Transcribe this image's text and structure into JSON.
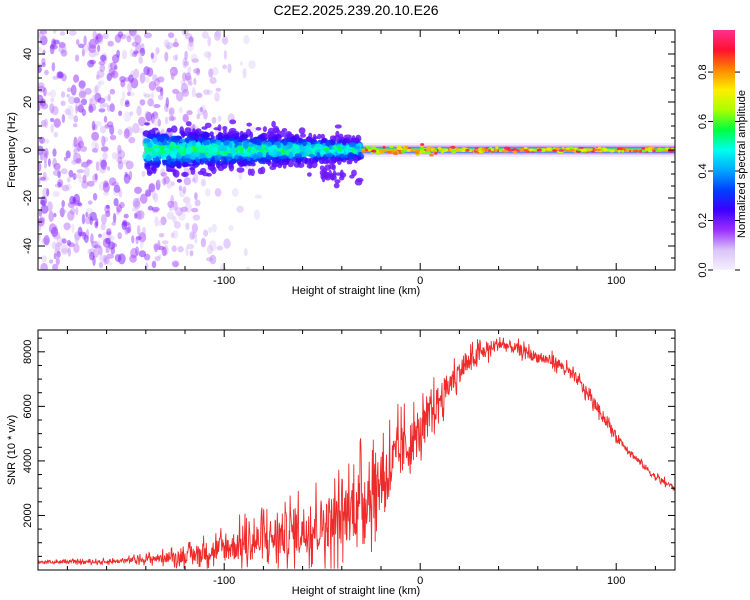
{
  "title": "C2E2.2025.239.20.10.E26",
  "chart_data": [
    {
      "type": "heatmap",
      "name": "spectrogram",
      "xlabel": "Height of straight line (km)",
      "ylabel": "Frequency (Hz)",
      "xlim": [
        -195,
        130
      ],
      "ylim": [
        -50,
        50
      ],
      "xticks": [
        -100,
        0,
        100
      ],
      "xtick_labels": [
        "-100",
        "0",
        "100"
      ],
      "yticks": [
        -40,
        -20,
        0,
        20,
        40
      ],
      "ytick_labels": [
        "-40",
        "-20",
        "0",
        "20",
        "40"
      ],
      "colorbar": {
        "label": "Normalized spectral amplitude",
        "range": [
          0.0,
          0.97
        ],
        "ticks": [
          0.0,
          0.2,
          0.4,
          0.6,
          0.8
        ],
        "tick_labels": [
          "0.0",
          "0.2",
          "0.4",
          "0.6",
          "0.8"
        ],
        "colormap": [
          "#f5f0ff",
          "#d9c4f7",
          "#9b30ff",
          "#3c00ff",
          "#0040ff",
          "#00aaff",
          "#00ffee",
          "#00ff40",
          "#aaff00",
          "#ffee00",
          "#ff8800",
          "#ff1030",
          "#ff3090"
        ]
      },
      "regions": [
        {
          "x_range": [
            -195,
            -140
          ],
          "freq_spread": 50,
          "amplitude": [
            0.05,
            0.3
          ],
          "description_color": "#8a2be2"
        },
        {
          "x_range": [
            -140,
            -30
          ],
          "freq_center": 0,
          "freq_spread": 10,
          "amplitude": [
            0.2,
            0.6
          ]
        },
        {
          "x_range": [
            -30,
            130
          ],
          "freq_center": 0,
          "freq_spread": 2,
          "amplitude": [
            0.6,
            0.95
          ]
        }
      ]
    },
    {
      "type": "line",
      "name": "snr",
      "xlabel": "Height of straight line (km)",
      "ylabel": "SNR (10 * v/v)",
      "xlim": [
        -195,
        130
      ],
      "ylim": [
        0,
        8800
      ],
      "xticks": [
        -100,
        0,
        100
      ],
      "xtick_labels": [
        "-100",
        "0",
        "100"
      ],
      "yticks": [
        2000,
        4000,
        6000,
        8000
      ],
      "ytick_labels": [
        "2000",
        "4000",
        "6000",
        "8000"
      ],
      "color": "#ee2a2a",
      "envelope": {
        "x": [
          -195,
          -160,
          -140,
          -120,
          -100,
          -80,
          -60,
          -40,
          -30,
          -20,
          -10,
          0,
          10,
          20,
          30,
          40,
          50,
          60,
          70,
          80,
          90,
          100,
          110,
          120,
          130
        ],
        "mean": [
          300,
          300,
          400,
          500,
          800,
          1100,
          1500,
          1900,
          2600,
          3300,
          4300,
          5000,
          6300,
          7300,
          7900,
          8300,
          8100,
          7800,
          7600,
          7000,
          6000,
          4900,
          4100,
          3400,
          3000
        ],
        "spread": [
          60,
          80,
          150,
          300,
          600,
          900,
          1100,
          1300,
          1500,
          1500,
          1200,
          900,
          700,
          500,
          400,
          300,
          250,
          250,
          250,
          250,
          250,
          200,
          150,
          150,
          120
        ]
      }
    }
  ]
}
